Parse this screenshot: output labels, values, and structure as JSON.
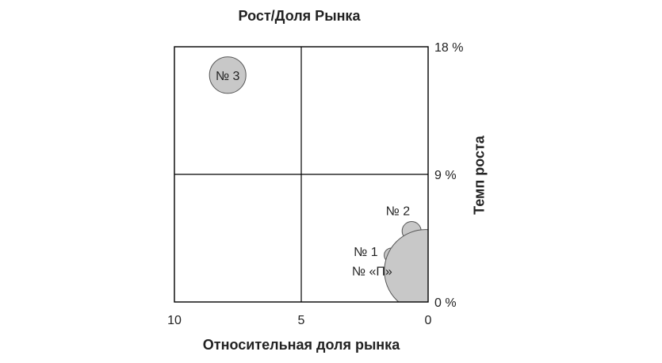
{
  "chart_data": {
    "type": "scatter",
    "title": "Рост/Доля Рынка",
    "xlabel": "Относительная доля рынка",
    "ylabel": "Темп роста",
    "xlim": [
      10,
      0
    ],
    "ylim": [
      0,
      18
    ],
    "x_ticks": [
      {
        "value": 10,
        "label": "10"
      },
      {
        "value": 5,
        "label": "5"
      },
      {
        "value": 0,
        "label": "0"
      }
    ],
    "y_ticks": [
      {
        "value": 18,
        "label": "18 %"
      },
      {
        "value": 9,
        "label": "9 %"
      },
      {
        "value": 0,
        "label": "0 %"
      }
    ],
    "grid_dividers": {
      "x": 5,
      "y": 9
    },
    "colors": {
      "bubble_fill": "#c8c8c8",
      "bubble_stroke": "#555555",
      "frame": "#000000",
      "text": "#222222"
    },
    "points": [
      {
        "label": "№ 3",
        "x": 7.9,
        "y": 16.0,
        "r": 23,
        "label_side": "inside"
      },
      {
        "label": "№ 2",
        "x": 0.65,
        "y": 5.0,
        "r": 12,
        "label_side": "above-left"
      },
      {
        "label": "№ 1",
        "x": 1.45,
        "y": 3.3,
        "r": 9,
        "label_side": "left"
      },
      {
        "label": "№ «П»",
        "x": 0.1,
        "y": 2.2,
        "r": 52,
        "label_side": "left"
      }
    ]
  }
}
